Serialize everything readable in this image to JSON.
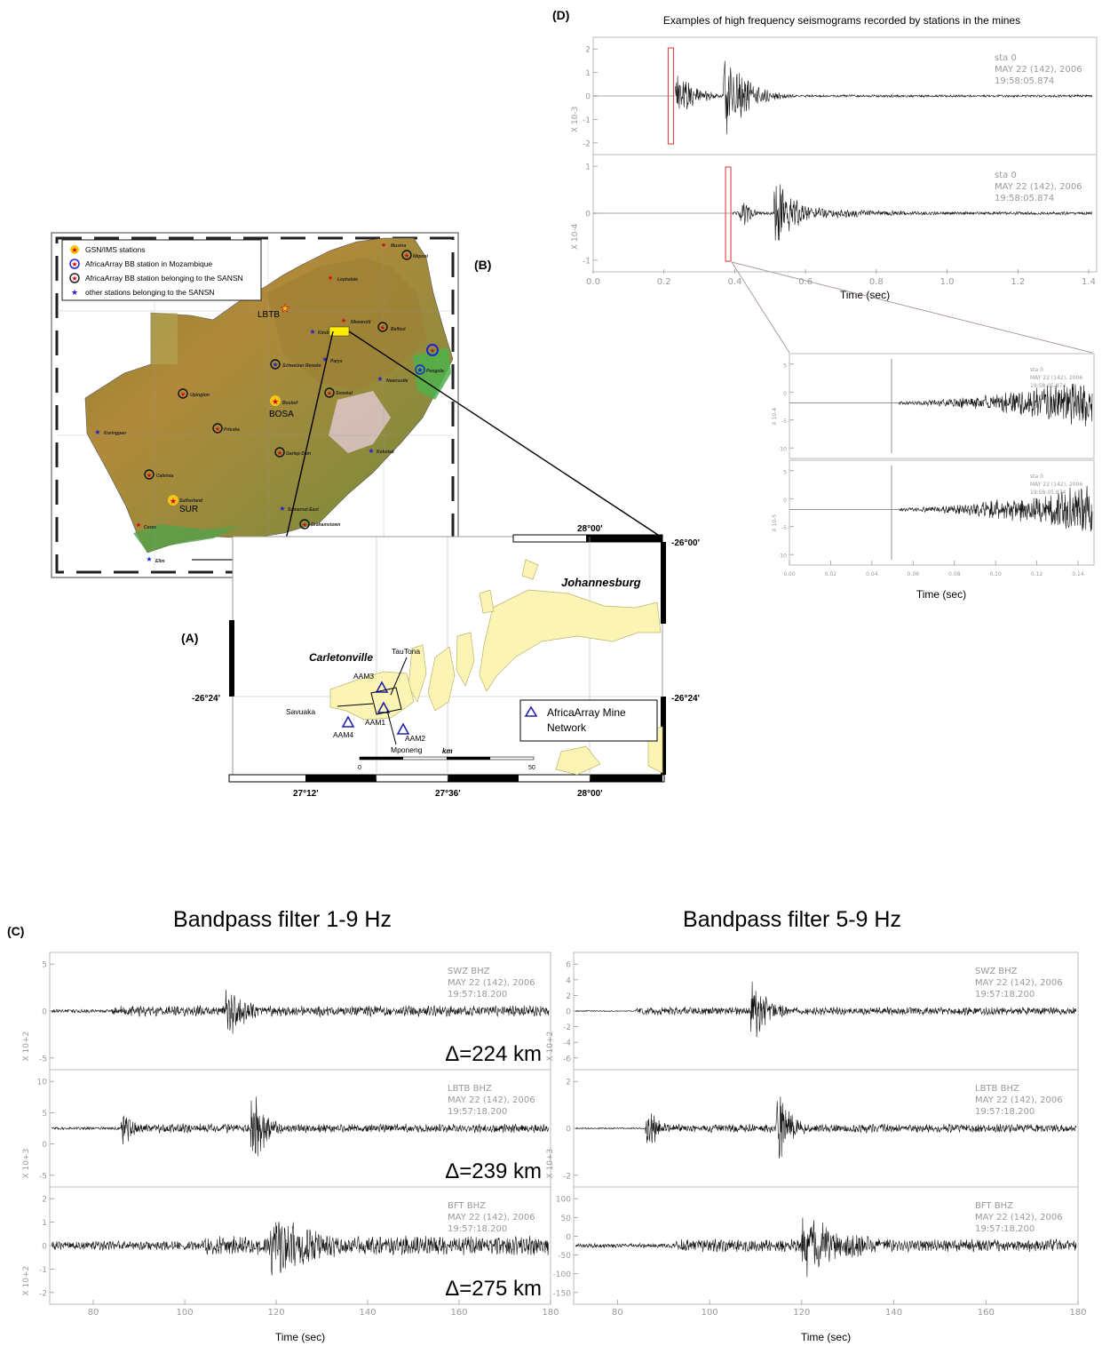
{
  "panels": {
    "A": "(A)",
    "B": "(B)",
    "C": "(C)",
    "D": "(D)"
  },
  "map_b": {
    "legend": [
      {
        "text": "GSN/IMS stations",
        "symbol": "gold-star"
      },
      {
        "text": "AfricaArray BB station in Mozambique",
        "symbol": "blue-circle-star"
      },
      {
        "text": "AfricaArray BB station belonging to the SANSN",
        "symbol": "black-circle-star"
      },
      {
        "text": "other stations belonging to the SANSN",
        "symbol": "blue-star"
      }
    ],
    "gsn_stations": [
      "LBTB",
      "BOSA",
      "SUR"
    ],
    "places": [
      "Musina",
      "Nkponi",
      "Lephalale",
      "Nkwaruiti",
      "Belfast",
      "Parys",
      "Schweizer Reneke",
      "Pongola",
      "Newcastle",
      "Upington",
      "Senekal",
      "Bosbof",
      "Prieska",
      "Kimberley",
      "Kokstad",
      "Calvinia",
      "Sutherland",
      "Grahamstown",
      "Somerset East",
      "Ceres",
      "Elim",
      "Koringpan",
      "Gariep Dam"
    ],
    "credit": "Council for Geoscience"
  },
  "map_a": {
    "title": "Johannesburg",
    "town": "Carletonville",
    "mines": [
      "TauTona",
      "Savuaka",
      "Mponeng"
    ],
    "stations": [
      "AAM1",
      "AAM2",
      "AAM3",
      "AAM4"
    ],
    "legend": "AfricaArray Mine Network",
    "lon_ticks": [
      "27°12'",
      "27°36'",
      "28°00'"
    ],
    "top_lon": "28°00'",
    "lat_left": "-26°24'",
    "lat_right_top": "-26°00'",
    "lat_right": "-26°24'",
    "scale": {
      "unit": "km",
      "min": "0",
      "max": "50"
    }
  },
  "seis_d": {
    "title": "Examples of high frequency seismograms recorded by stations in the mines",
    "traces": [
      {
        "sta": "sta   0",
        "date": "MAY  22  (142),  2006",
        "time": "19:58:05.874",
        "exp": "X 10-3",
        "yticks": [
          "2",
          "1",
          "0",
          "-1",
          "-2"
        ]
      },
      {
        "sta": "sta   0",
        "date": "MAY  22  (142),  2006",
        "time": "19:58:05.874",
        "exp": "X 10-4",
        "yticks": [
          "1",
          "0",
          "-1"
        ]
      }
    ],
    "xticks": [
      "0.0",
      "0.2",
      "0.4",
      "0.6",
      "0.8",
      "1.0",
      "1.2",
      "1.4"
    ],
    "xlabel": "Time (sec)"
  },
  "seis_zoom": {
    "traces": [
      {
        "exp": "X 10-4",
        "yticks": [
          "5",
          "0",
          "-5",
          "-10"
        ]
      },
      {
        "exp": "X 10-5",
        "yticks": [
          "5",
          "0",
          "-5",
          "-10"
        ]
      }
    ],
    "xticks": [
      "0.00",
      "0.02",
      "0.04",
      "0.06",
      "0.08",
      "0.10",
      "0.12",
      "0.14"
    ],
    "xlabel": "Time (sec)"
  },
  "seis_c": {
    "left_title": "Bandpass filter 1-9 Hz",
    "right_title": "Bandpass filter 5-9 Hz",
    "left_traces": [
      {
        "sta": "SWZ   BHZ",
        "date": "MAY  22  (142),  2006",
        "time": "19:57:18.200",
        "exp": "X 10+2",
        "dist": "Δ=224 km",
        "yticks": [
          "5",
          "0",
          "-5"
        ]
      },
      {
        "sta": "LBTB   BHZ",
        "date": "MAY  22  (142),  2006",
        "time": "19:57:18.200",
        "exp": "X 10+3",
        "dist": "Δ=239 km",
        "yticks": [
          "10",
          "5",
          "0",
          "-5"
        ]
      },
      {
        "sta": "BFT   BHZ",
        "date": "MAY  22  (142),  2006",
        "time": "19:57:18.200",
        "exp": "X 10+2",
        "dist": "Δ=275 km",
        "yticks": [
          "2",
          "1",
          "0",
          "-1",
          "-2"
        ]
      }
    ],
    "right_traces": [
      {
        "sta": "SWZ   BHZ",
        "date": "MAY  22  (142),  2006",
        "time": "19:57:18.200",
        "exp": "X 10+2",
        "yticks": [
          "6",
          "4",
          "2",
          "0",
          "-2",
          "-4",
          "-6"
        ]
      },
      {
        "sta": "LBTB   BHZ",
        "date": "MAY  22  (142),  2006",
        "time": "19:57:18.200",
        "exp": "X 10+3",
        "yticks": [
          "2",
          "0",
          "-2"
        ]
      },
      {
        "sta": "BFT   BHZ",
        "date": "MAY  22  (142),  2006",
        "time": "19:57:18.200",
        "exp": "",
        "yticks": [
          "100",
          "50",
          "0",
          "-50",
          "-100",
          "-150"
        ]
      }
    ],
    "xticks": [
      "80",
      "100",
      "120",
      "140",
      "160",
      "180"
    ],
    "xlabel": "Time (sec)"
  }
}
